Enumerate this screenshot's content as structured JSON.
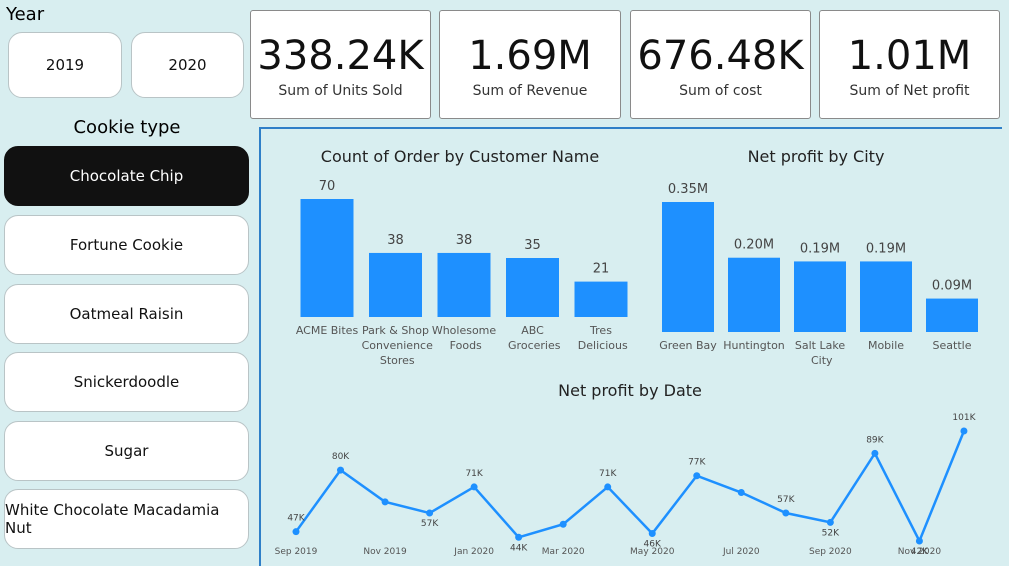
{
  "year_slicer": {
    "title": "Year",
    "options": [
      "2019",
      "2020"
    ]
  },
  "cookie_slicer": {
    "title": "Cookie type",
    "options": [
      "Chocolate Chip",
      "Fortune Cookie",
      "Oatmeal Raisin",
      "Snickerdoodle",
      "Sugar",
      "White Chocolate Macadamia Nut"
    ],
    "selected": 0
  },
  "cards": [
    {
      "value": "338.24K",
      "label": "Sum of Units Sold"
    },
    {
      "value": "1.69M",
      "label": "Sum of Revenue"
    },
    {
      "value": "676.48K",
      "label": "Sum of cost"
    },
    {
      "value": "1.01M",
      "label": "Sum of Net profit"
    }
  ],
  "chart_data": [
    {
      "type": "bar",
      "title": "Count of Order by Customer Name",
      "color": "#1e90ff",
      "categories": [
        "ACME Bites",
        "Park & Shop Convenience Stores",
        "Wholesome Foods",
        "ABC Groceries",
        "Tres Delicious"
      ],
      "values": [
        70,
        38,
        38,
        35,
        21
      ]
    },
    {
      "type": "bar",
      "title": "Net profit by City",
      "color": "#1e90ff",
      "categories": [
        "Green Bay",
        "Huntington",
        "Salt Lake City",
        "Mobile",
        "Seattle"
      ],
      "values": [
        350000,
        200000,
        190000,
        190000,
        90000
      ],
      "value_labels": [
        "0.35M",
        "0.20M",
        "0.19M",
        "0.19M",
        "0.09M"
      ]
    },
    {
      "type": "line",
      "title": "Net profit by Date",
      "color": "#1e90ff",
      "categories": [
        "Sep 2019",
        null,
        "Nov 2019",
        null,
        "Jan 2020",
        null,
        "Mar 2020",
        null,
        "May 2020",
        null,
        "Jul 2020",
        null,
        "Sep 2020",
        null,
        "Nov 2020",
        null
      ],
      "values": [
        47000,
        80000,
        63000,
        57000,
        71000,
        44000,
        51000,
        71000,
        46000,
        77000,
        68000,
        57000,
        52000,
        89000,
        42000,
        101000
      ],
      "value_labels": [
        "47K",
        "80K",
        null,
        "57K",
        "71K",
        "44K",
        null,
        "71K",
        "46K",
        "77K",
        null,
        "57K",
        "52K",
        "89K",
        "42K",
        "101K"
      ]
    }
  ]
}
